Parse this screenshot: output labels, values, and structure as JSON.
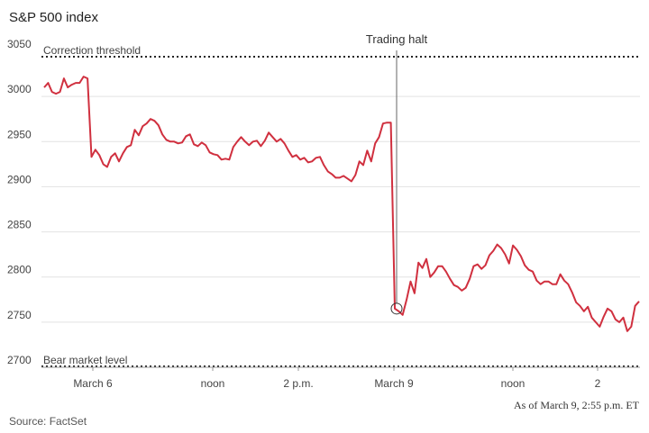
{
  "chart_data": {
    "type": "line",
    "title": "S&P 500 index",
    "xlabel": "",
    "ylabel": "",
    "ylim": [
      2700,
      3050
    ],
    "y_ticks": [
      3050,
      3000,
      2950,
      2900,
      2850,
      2800,
      2750,
      2700
    ],
    "x_ticks": [
      "March 6",
      "noon",
      "2 p.m.",
      "March 9",
      "noon",
      "2"
    ],
    "grid": true,
    "series": [
      {
        "color": "#d0303f",
        "values": [
          3010,
          3015,
          3005,
          3003,
          3005,
          3020,
          3010,
          3013,
          3015,
          3015,
          3022,
          3020,
          2933,
          2941,
          2935,
          2925,
          2922,
          2933,
          2937,
          2928,
          2937,
          2944,
          2946,
          2963,
          2957,
          2967,
          2970,
          2975,
          2973,
          2968,
          2958,
          2952,
          2950,
          2950,
          2948,
          2949,
          2956,
          2958,
          2947,
          2945,
          2949,
          2946,
          2938,
          2936,
          2935,
          2930,
          2931,
          2930,
          2944,
          2950,
          2955,
          2950,
          2946,
          2950,
          2951,
          2945,
          2951,
          2960,
          2955,
          2950,
          2953,
          2948,
          2940,
          2933,
          2935,
          2930,
          2932,
          2927,
          2928,
          2932,
          2933,
          2924,
          2917,
          2914,
          2910,
          2910,
          2912,
          2909,
          2906,
          2913,
          2928,
          2924,
          2940,
          2928,
          2948,
          2955,
          2970,
          2971,
          2971,
          2765,
          2762,
          2758,
          2775,
          2795,
          2782,
          2816,
          2810,
          2820,
          2800,
          2805,
          2812,
          2812,
          2806,
          2798,
          2791,
          2789,
          2785,
          2788,
          2798,
          2812,
          2814,
          2809,
          2813,
          2824,
          2829,
          2836,
          2832,
          2825,
          2815,
          2835,
          2830,
          2823,
          2813,
          2808,
          2806,
          2796,
          2792,
          2795,
          2795,
          2792,
          2792,
          2803,
          2796,
          2792,
          2783,
          2772,
          2768,
          2762,
          2767,
          2755,
          2750,
          2745,
          2756,
          2765,
          2762,
          2753,
          2750,
          2755,
          2740,
          2745,
          2768,
          2773
        ]
      }
    ],
    "reference_lines": [
      {
        "label": "Correction threshold",
        "value": 3044,
        "style": "dotted"
      },
      {
        "label": "Bear market level",
        "value": 2701,
        "style": "dotted"
      }
    ],
    "annotations": [
      {
        "label": "Trading halt",
        "at_index": 89
      }
    ],
    "footnote": "As of March 9, 2:55 p.m. ET",
    "source": "Source: FactSet"
  }
}
